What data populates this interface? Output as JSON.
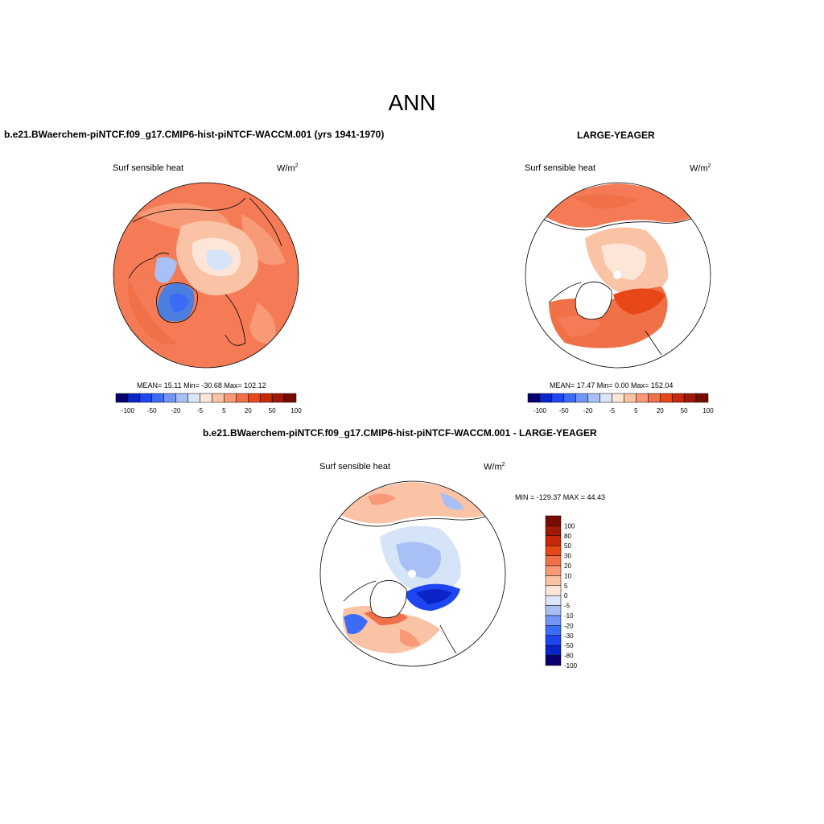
{
  "title": "ANN",
  "panels": {
    "test": {
      "title": "b.e21.BWaerchem-piNTCF.f09_g17.CMIP6-hist-piNTCF-WACCM.001 (yrs 1941-1970)",
      "variable": "Surf sensible heat",
      "units_base": "W/m",
      "units_exp": "2",
      "stats": "MEAN=  15.11  Min= -30.68  Max= 102.12"
    },
    "obs": {
      "title": "LARGE-YEAGER",
      "variable": "Surf sensible heat",
      "units_base": "W/m",
      "units_exp": "2",
      "stats": "MEAN=  17.47  Min=   0.00  Max= 152.04"
    },
    "diff": {
      "title": "b.e21.BWaerchem-piNTCF.f09_g17.CMIP6-hist-piNTCF-WACCM.001 - LARGE-YEAGER",
      "variable": "Surf sensible heat",
      "units_base": "W/m",
      "units_exp": "2",
      "stats": "MIN = -129.37 MAX =  44.43"
    }
  },
  "colorbar_top": {
    "colors": [
      "#08006e",
      "#0a24c8",
      "#1e46f0",
      "#3c6cf5",
      "#7296f5",
      "#a8c0f5",
      "#dbe6fa",
      "#fde6d8",
      "#fbc3a5",
      "#f89a78",
      "#f07048",
      "#e84818",
      "#c62a0a",
      "#a01806",
      "#780c00"
    ],
    "labels": [
      "-100",
      "-50",
      "-20",
      "-5",
      "5",
      "20",
      "50",
      "100"
    ]
  },
  "colorbar_diff": {
    "colors": [
      "#780c00",
      "#a01806",
      "#c62a0a",
      "#e84818",
      "#f07048",
      "#f89a78",
      "#fbc3a5",
      "#fde6d8",
      "#dbe6fa",
      "#a8c0f5",
      "#7296f5",
      "#3c6cf5",
      "#1e46f0",
      "#0a24c8",
      "#08006e"
    ],
    "labels": [
      "100",
      "80",
      "50",
      "30",
      "20",
      "10",
      "5",
      "0",
      "-5",
      "-10",
      "-20",
      "-30",
      "-50",
      "-80",
      "-100"
    ]
  },
  "colors": {
    "ocean_warm": "#f47b55",
    "ice_light": "#fde4d4",
    "ice_blue": "#d6e4f8",
    "greenland": "#4a7fe0",
    "land_white": "#ffffff"
  }
}
